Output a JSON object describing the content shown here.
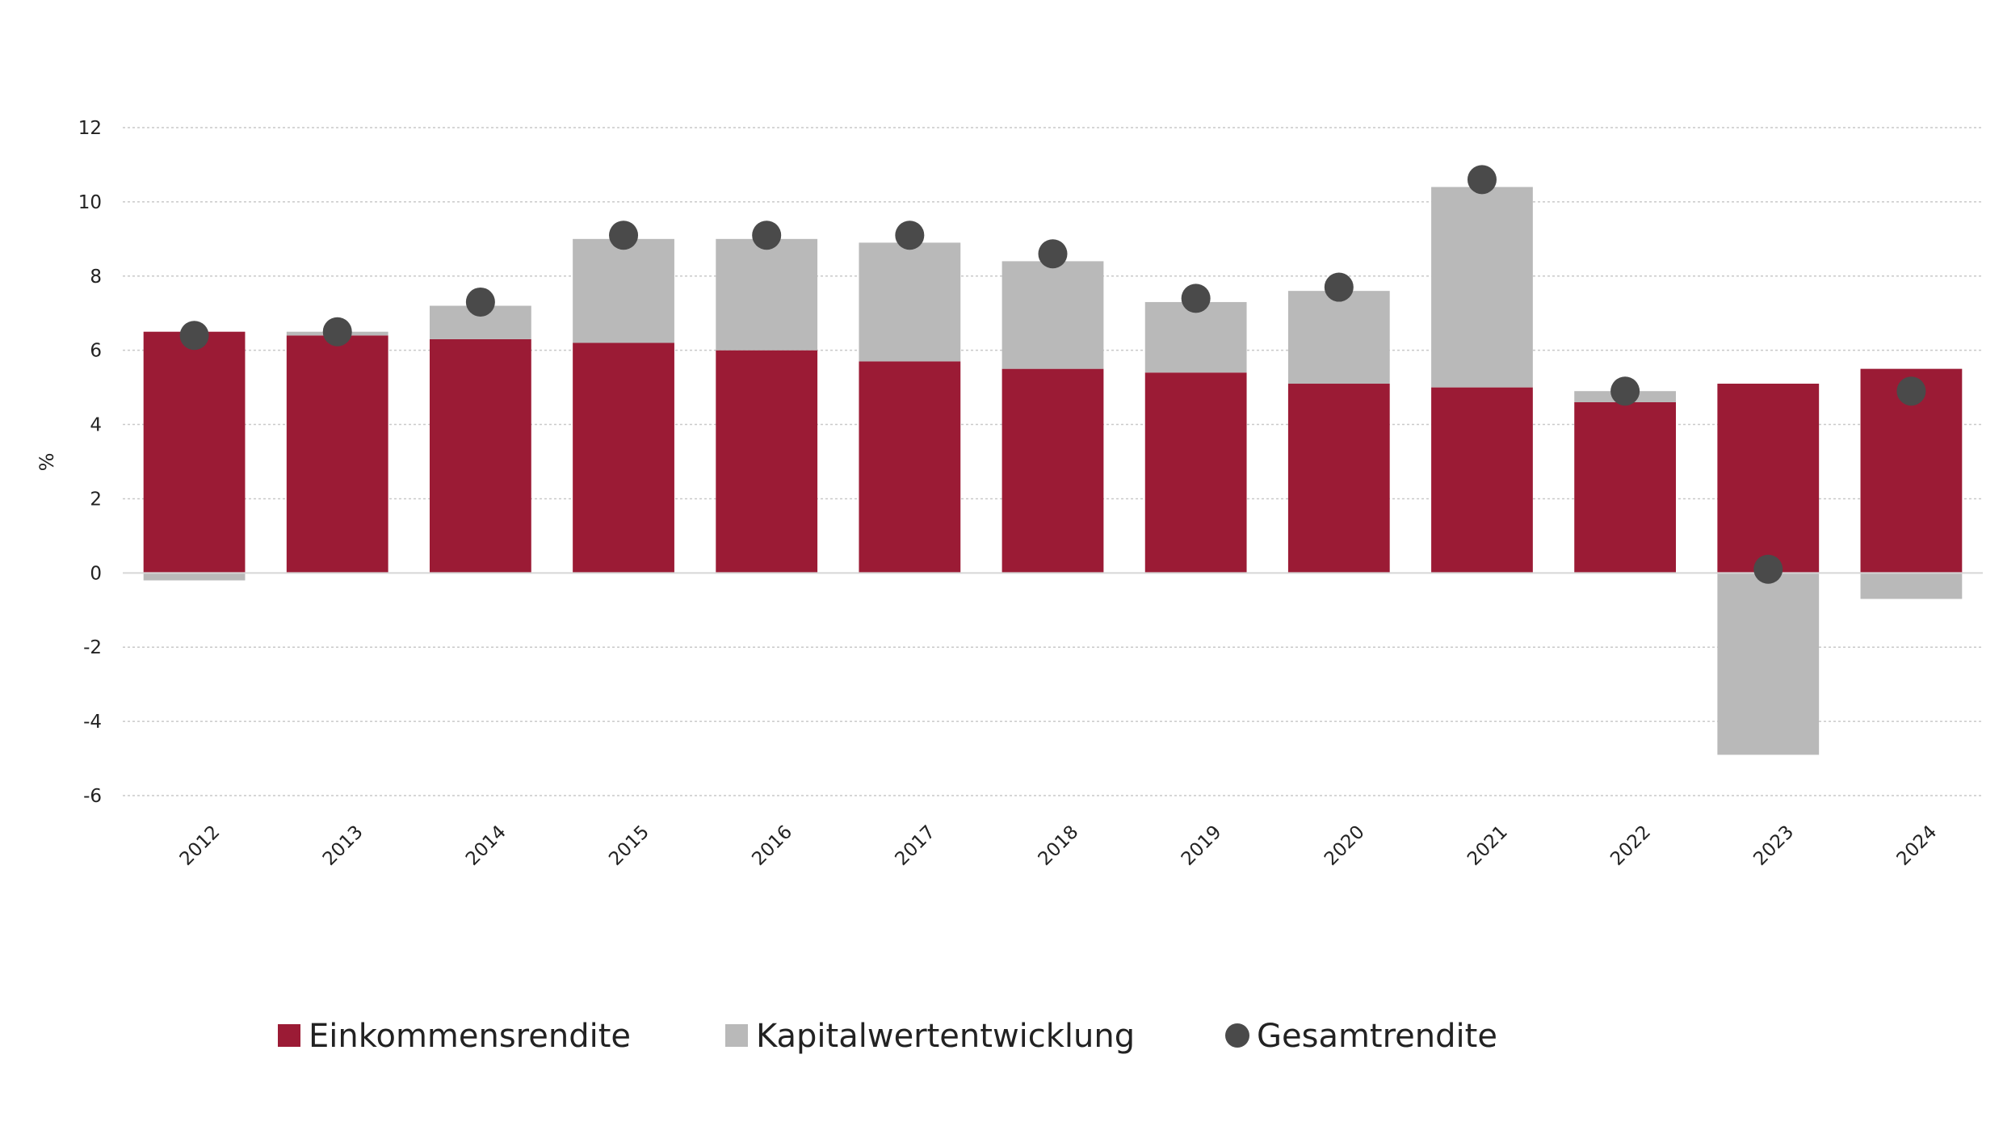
{
  "chart_data": {
    "type": "bar",
    "stacked": true,
    "ylabel": "%",
    "ylim": [
      -6,
      12
    ],
    "yticks": [
      12,
      10,
      8,
      6,
      4,
      2,
      0,
      -2,
      -4,
      -6
    ],
    "grid": true,
    "legend_position": "bottom",
    "categories": [
      "2012",
      "2013",
      "2014",
      "2015",
      "2016",
      "2017",
      "2018",
      "2019",
      "2020",
      "2021",
      "2022",
      "2023",
      "2024"
    ],
    "series": [
      {
        "name": "Einkommensrendite",
        "kind": "bar",
        "color": "#9b1b35",
        "values": [
          6.5,
          6.4,
          6.3,
          6.2,
          6.0,
          5.7,
          5.5,
          5.4,
          5.1,
          5.0,
          4.6,
          5.1,
          5.5
        ]
      },
      {
        "name": "Kapitalwertentwicklung",
        "kind": "bar",
        "color": "#b9b9b9",
        "values": [
          -0.2,
          0.1,
          0.9,
          2.8,
          3.0,
          3.2,
          2.9,
          1.9,
          2.5,
          5.4,
          0.3,
          -4.9,
          -0.7
        ]
      },
      {
        "name": "Gesamtrendite",
        "kind": "point",
        "color": "#4a4a4a",
        "values": [
          6.4,
          6.5,
          7.3,
          9.1,
          9.1,
          9.1,
          8.6,
          7.4,
          7.7,
          10.6,
          4.9,
          0.1,
          4.9
        ]
      }
    ]
  }
}
